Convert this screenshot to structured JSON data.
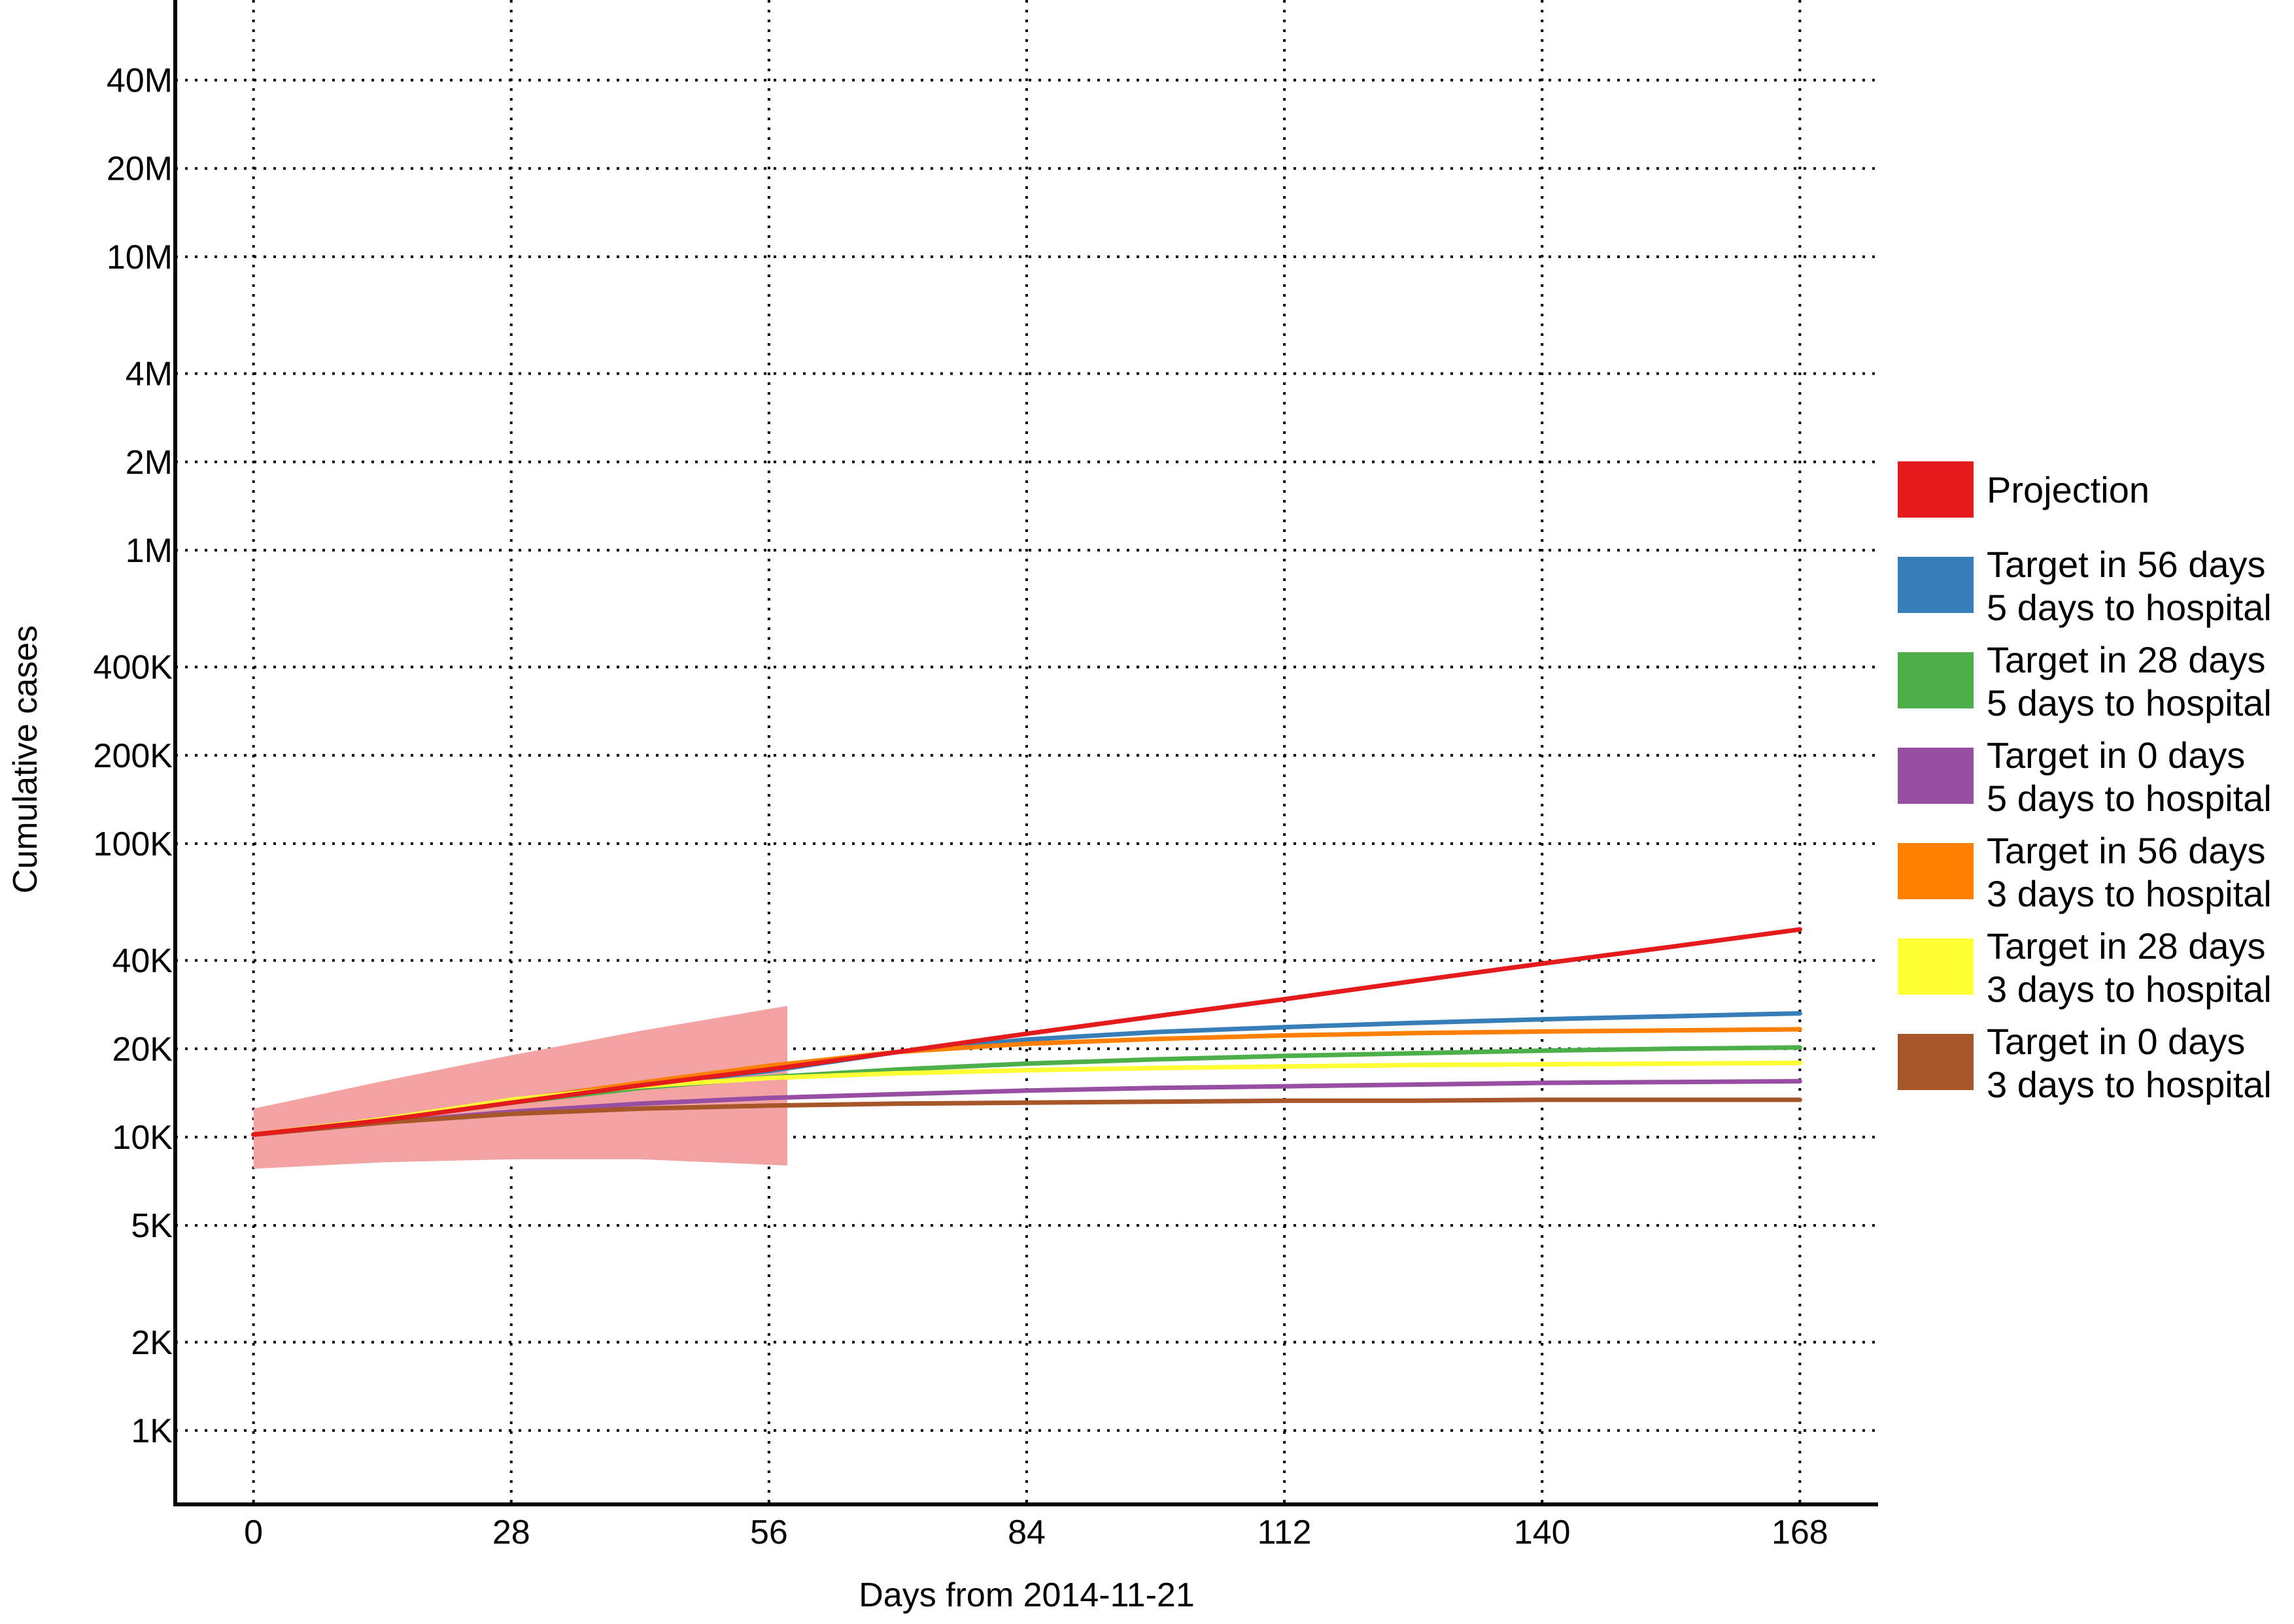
{
  "chart_data": {
    "type": "line",
    "title": "",
    "xlabel": "Days from 2014-11-21",
    "ylabel": "Cumulative cases",
    "x_ticks": [
      0,
      28,
      56,
      84,
      112,
      140,
      168
    ],
    "x_tick_labels": [
      "0",
      "28",
      "56",
      "84",
      "112",
      "140",
      "168"
    ],
    "xlim": [
      -8.5,
      176.5
    ],
    "y_scale": "log",
    "y_ticks": [
      1000,
      2000,
      5000,
      10000,
      20000,
      40000,
      100000,
      200000,
      400000,
      1000000,
      2000000,
      4000000,
      10000000,
      20000000,
      40000000
    ],
    "y_tick_labels": [
      "1K",
      "2K",
      "5K",
      "10K",
      "20K",
      "40K",
      "100K",
      "200K",
      "400K",
      "1M",
      "2M",
      "4M",
      "10M",
      "20M",
      "40M"
    ],
    "ylim": [
      560,
      75000000
    ],
    "grid": true,
    "legend_position": "right",
    "band": {
      "color": "#f4a3a3",
      "x": [
        0,
        14,
        28,
        42,
        58
      ],
      "lower": [
        7800,
        8200,
        8400,
        8400,
        8000
      ],
      "upper": [
        12500,
        15500,
        19000,
        23000,
        28000
      ]
    },
    "series": [
      {
        "name": "Projection",
        "color": "#e41a1c",
        "x": [
          0,
          14,
          28,
          42,
          56,
          70,
          84,
          98,
          112,
          126,
          140,
          154,
          168
        ],
        "values": [
          10200,
          11400,
          13100,
          15000,
          17000,
          19500,
          22500,
          25800,
          29500,
          34000,
          39000,
          44500,
          51000
        ]
      },
      {
        "name": "Target in 56 days\n5 days to hospital",
        "color": "#377eb8",
        "x": [
          0,
          14,
          28,
          42,
          56,
          70,
          84,
          98,
          112,
          126,
          140,
          154,
          168
        ],
        "values": [
          10200,
          11400,
          13100,
          15000,
          16800,
          19500,
          21500,
          22800,
          23700,
          24500,
          25200,
          25800,
          26400
        ]
      },
      {
        "name": "Target in 28 days\n5 days to hospital",
        "color": "#4daf4a",
        "x": [
          0,
          14,
          28,
          42,
          56,
          70,
          84,
          98,
          112,
          126,
          140,
          154,
          168
        ],
        "values": [
          10200,
          11400,
          13100,
          14700,
          16000,
          17000,
          17800,
          18400,
          18900,
          19300,
          19700,
          20000,
          20200
        ]
      },
      {
        "name": "Target in 0 days\n5 days to hospital",
        "color": "#984ea3",
        "x": [
          0,
          14,
          28,
          42,
          56,
          70,
          84,
          98,
          112,
          126,
          140,
          154,
          168
        ],
        "values": [
          10200,
          11200,
          12200,
          13000,
          13600,
          14000,
          14400,
          14700,
          14900,
          15100,
          15300,
          15400,
          15500
        ]
      },
      {
        "name": "Target in 56 days\n3 days to hospital",
        "color": "#ff7f00",
        "x": [
          0,
          14,
          28,
          42,
          56,
          70,
          84,
          98,
          112,
          126,
          140,
          154,
          168
        ],
        "values": [
          10200,
          11500,
          13300,
          15300,
          17500,
          19500,
          20800,
          21600,
          22200,
          22600,
          22900,
          23100,
          23300
        ]
      },
      {
        "name": "Target in 28 days\n3 days to hospital",
        "color": "#ffff33",
        "x": [
          0,
          14,
          28,
          42,
          56,
          70,
          84,
          98,
          112,
          126,
          140,
          154,
          168
        ],
        "values": [
          10200,
          11500,
          13400,
          14900,
          15900,
          16500,
          16900,
          17200,
          17400,
          17600,
          17700,
          17800,
          17900
        ]
      },
      {
        "name": "Target in 0 days\n3 days to hospital",
        "color": "#a65628",
        "x": [
          0,
          14,
          28,
          42,
          56,
          70,
          84,
          98,
          112,
          126,
          140,
          154,
          168
        ],
        "values": [
          10200,
          11200,
          12000,
          12500,
          12800,
          13000,
          13100,
          13200,
          13300,
          13300,
          13400,
          13400,
          13400
        ]
      }
    ]
  }
}
